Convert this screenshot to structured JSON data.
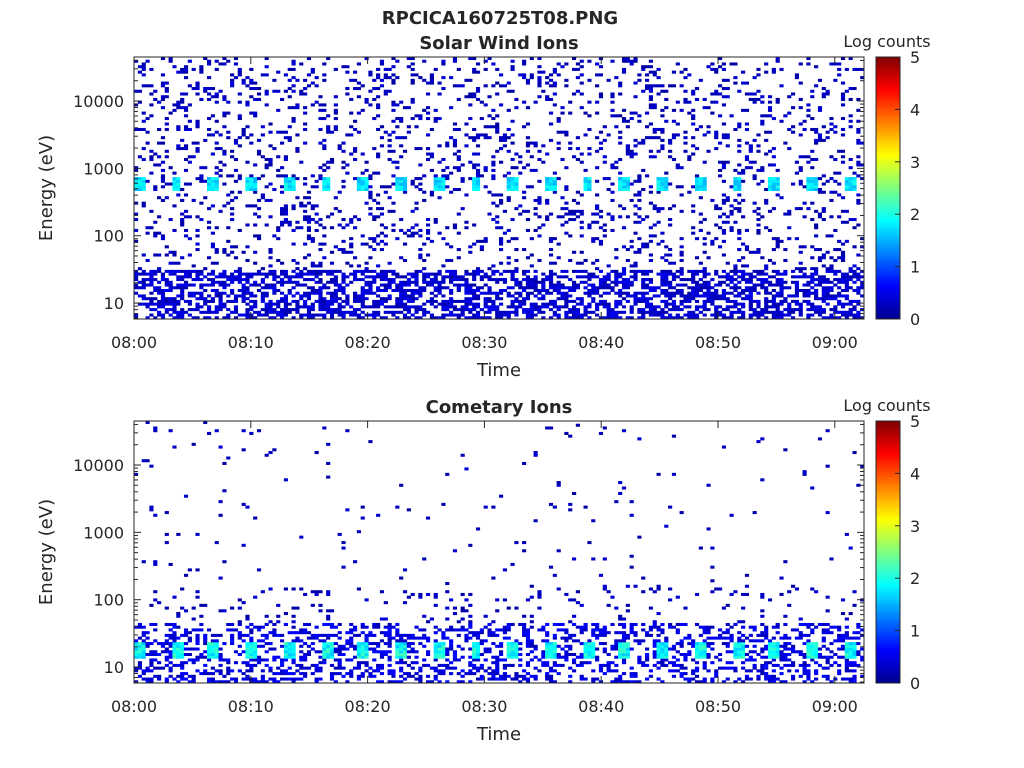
{
  "figure_title": "RPCICA160725T08.PNG",
  "chart_data": [
    {
      "type": "heatmap",
      "title": "Solar Wind Ions",
      "xlabel": "Time",
      "ylabel": "Energy (eV)",
      "x_tick_labels": [
        "08:00",
        "08:10",
        "08:20",
        "08:30",
        "08:40",
        "08:50",
        "09:00"
      ],
      "x_range_minutes": [
        0,
        62.5
      ],
      "y_scale": "log",
      "y_tick_labels": [
        "10",
        "100",
        "1000",
        "10000"
      ],
      "y_tick_values": [
        10,
        100,
        1000,
        10000
      ],
      "ylim": [
        5.8,
        45000
      ],
      "colorbar": {
        "label": "Log counts",
        "range": [
          0,
          5
        ],
        "tick_labels": [
          "0",
          "1",
          "2",
          "3",
          "4",
          "5"
        ],
        "colormap": "jet"
      },
      "features": [
        {
          "energy_range": [
            6,
            30
          ],
          "level": 0.2,
          "description_level": "dense low counts"
        },
        {
          "energy_range": [
            480,
            720
          ],
          "level": 1.8,
          "periodic_minutes": 3.2
        },
        {
          "energy_range": [
            30,
            40000
          ],
          "level": 0.1,
          "description_level": "sparse background"
        }
      ]
    },
    {
      "type": "heatmap",
      "title": "Cometary Ions",
      "xlabel": "Time",
      "ylabel": "Energy (eV)",
      "x_tick_labels": [
        "08:00",
        "08:10",
        "08:20",
        "08:30",
        "08:40",
        "08:50",
        "09:00"
      ],
      "x_range_minutes": [
        0,
        62.5
      ],
      "y_scale": "log",
      "y_tick_labels": [
        "10",
        "100",
        "1000",
        "10000"
      ],
      "y_tick_values": [
        10,
        100,
        1000,
        10000
      ],
      "ylim": [
        5.8,
        45000
      ],
      "colorbar": {
        "label": "Log counts",
        "range": [
          0,
          5
        ],
        "tick_labels": [
          "0",
          "1",
          "2",
          "3",
          "4",
          "5"
        ],
        "colormap": "jet"
      },
      "features": [
        {
          "energy_range": [
            6,
            45
          ],
          "level": 0.3,
          "description_level": "dense low counts"
        },
        {
          "energy_range": [
            14,
            24
          ],
          "level": 1.9,
          "periodic_minutes": 3.2
        },
        {
          "energy_range": [
            45,
            40000
          ],
          "level": 0.05,
          "description_level": "sparse background"
        }
      ]
    }
  ]
}
